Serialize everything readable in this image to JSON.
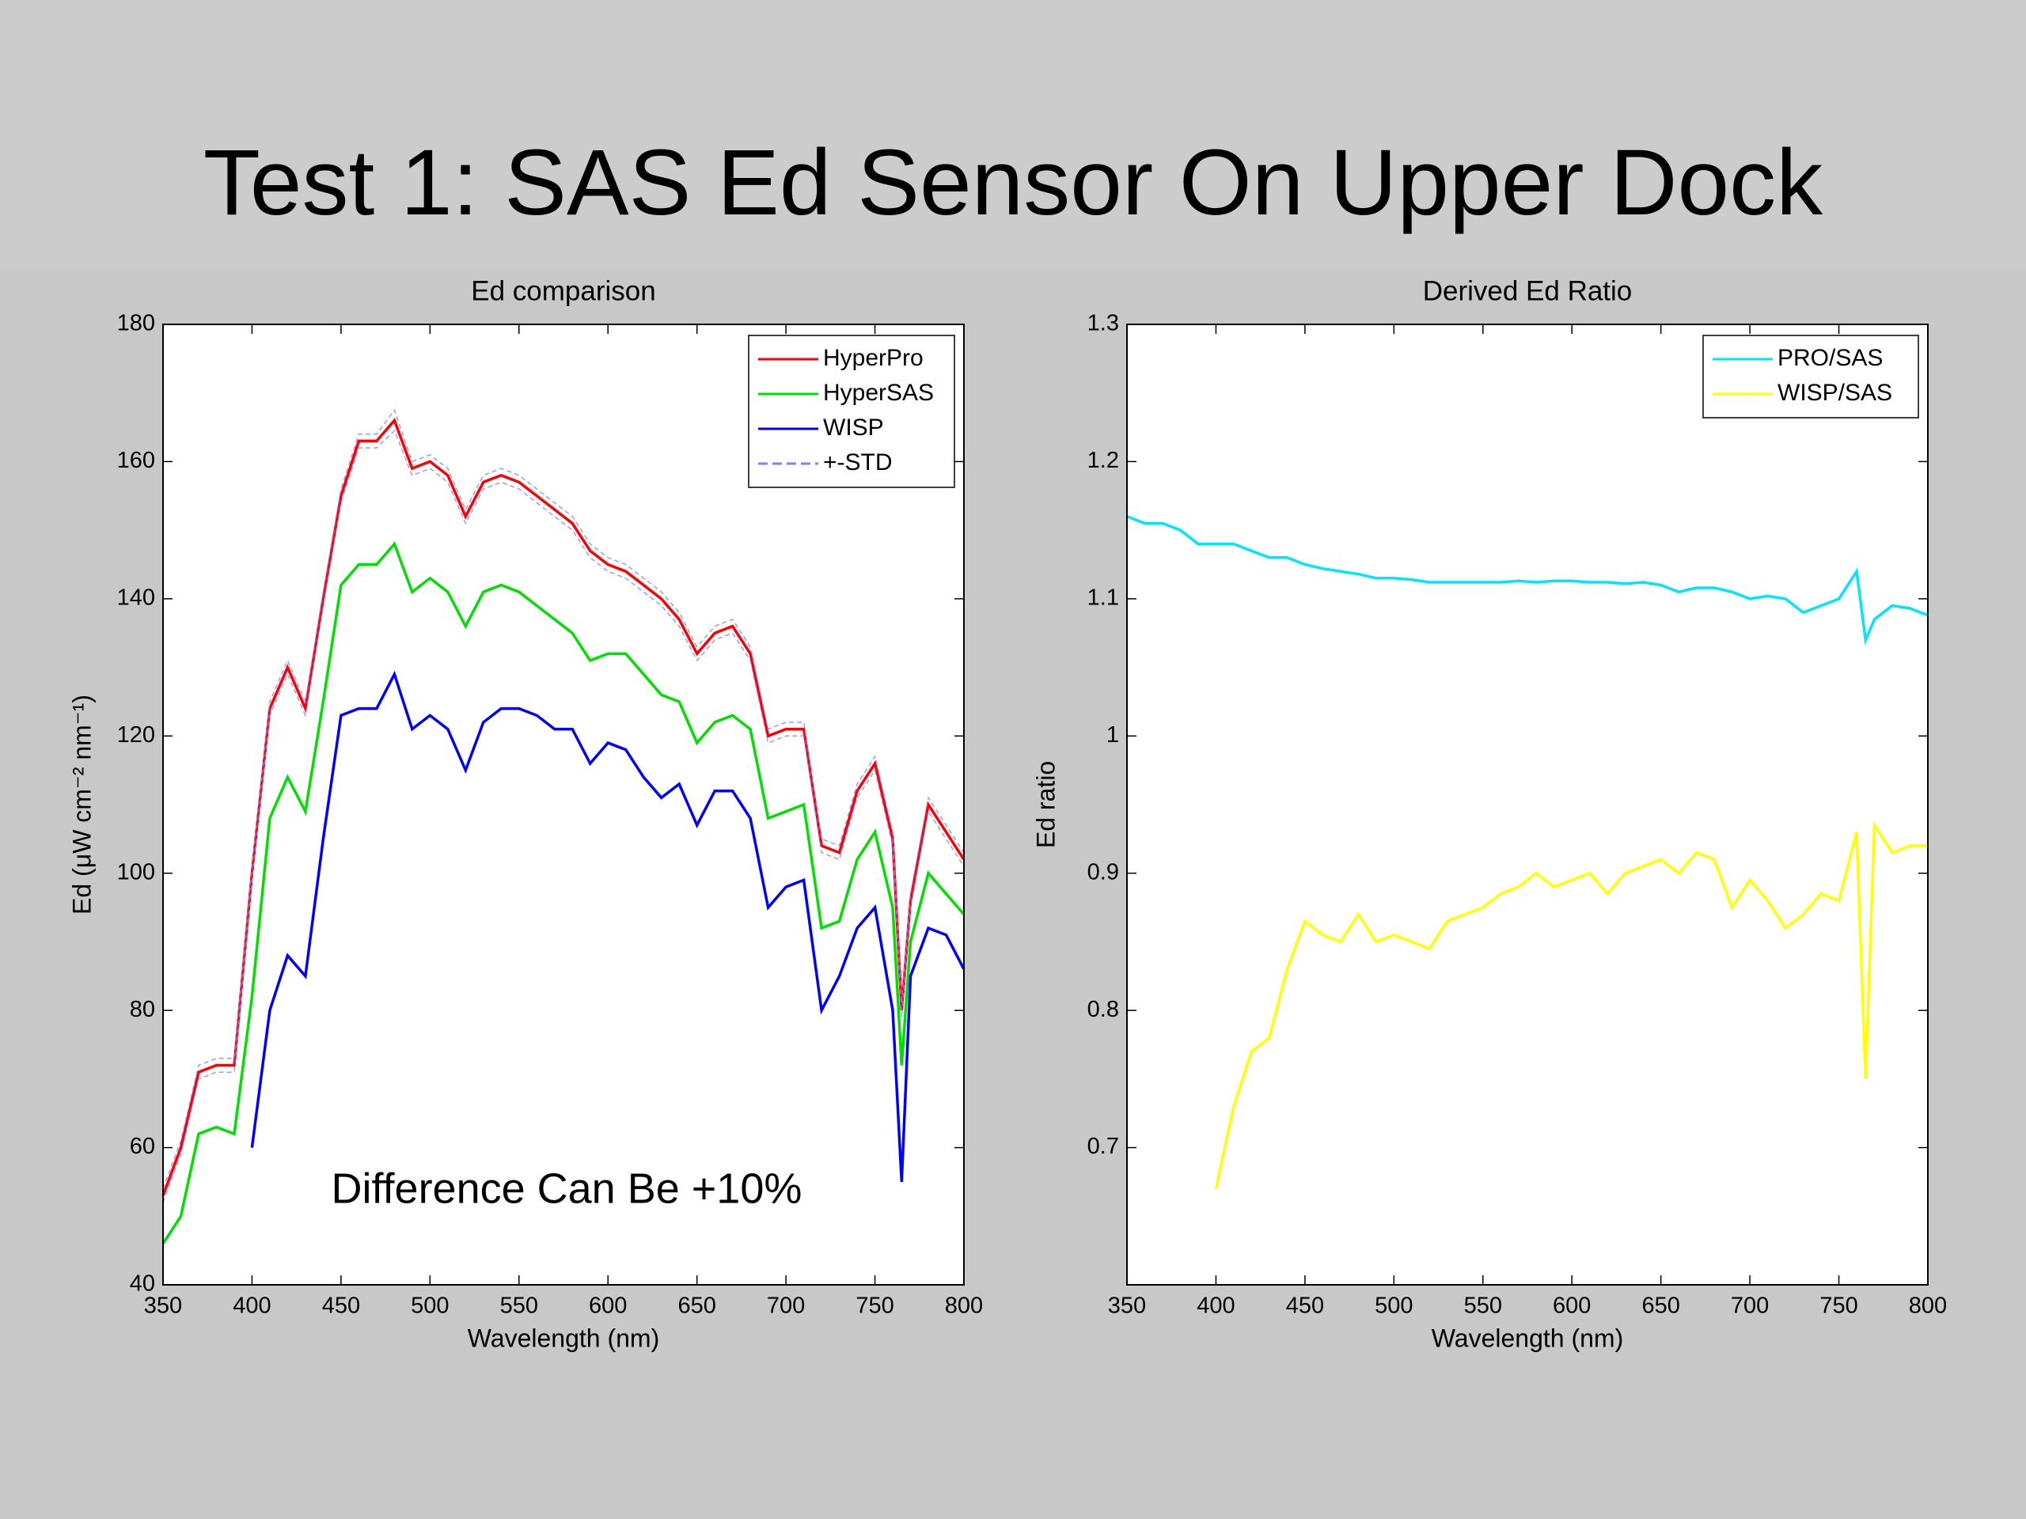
{
  "title": "Test 1: SAS Ed Sensor On Upper Dock",
  "chart_data": [
    {
      "type": "line",
      "title": "Ed comparison",
      "xlabel": "Wavelength (nm)",
      "ylabel": "Ed (μW cm⁻² nm⁻¹)",
      "annotation": "Difference Can Be +10%",
      "legend": "upper right",
      "x": [
        350,
        360,
        370,
        380,
        390,
        400,
        410,
        420,
        430,
        440,
        450,
        460,
        470,
        480,
        490,
        500,
        510,
        520,
        530,
        540,
        550,
        560,
        570,
        580,
        590,
        600,
        610,
        620,
        630,
        640,
        650,
        660,
        670,
        680,
        690,
        700,
        710,
        720,
        730,
        740,
        750,
        760,
        765,
        770,
        780,
        790,
        800
      ],
      "series": [
        {
          "name": "HyperPro",
          "color": "#ff0000",
          "values": [
            53,
            60,
            71,
            72,
            72,
            100,
            124,
            130,
            124,
            140,
            155,
            163,
            163,
            166,
            159,
            160,
            158,
            152,
            157,
            158,
            157,
            155,
            153,
            151,
            147,
            145,
            144,
            142,
            140,
            137,
            132,
            135,
            136,
            132,
            120,
            121,
            121,
            104,
            103,
            112,
            116,
            105,
            80,
            96,
            110,
            106,
            102
          ]
        },
        {
          "name": "HyperSAS",
          "color": "#00e000",
          "values": [
            46,
            50,
            62,
            63,
            62,
            82,
            108,
            114,
            109,
            125,
            142,
            145,
            145,
            148,
            141,
            143,
            141,
            136,
            141,
            142,
            141,
            139,
            137,
            135,
            131,
            132,
            132,
            129,
            126,
            125,
            119,
            122,
            123,
            121,
            108,
            109,
            110,
            92,
            93,
            102,
            106,
            95,
            72,
            90,
            100,
            97,
            94
          ]
        },
        {
          "name": "WISP",
          "color": "#0000ff",
          "values": [
            null,
            null,
            null,
            null,
            null,
            60,
            80,
            88,
            85,
            105,
            123,
            124,
            124,
            129,
            121,
            123,
            121,
            115,
            122,
            124,
            124,
            123,
            121,
            121,
            116,
            119,
            118,
            114,
            111,
            113,
            107,
            112,
            112,
            108,
            95,
            98,
            99,
            80,
            85,
            92,
            95,
            80,
            55,
            85,
            92,
            91,
            86
          ]
        },
        {
          "name": "+-STD",
          "color": "#8080ff",
          "dashed": true,
          "values": [
            1,
            1,
            1,
            1,
            1,
            1,
            1,
            1,
            1,
            1,
            1,
            1,
            1,
            1.5,
            1,
            1,
            1,
            1,
            1,
            1,
            1,
            1,
            1,
            1,
            1,
            1,
            1,
            1,
            1,
            1,
            1,
            1,
            1,
            1,
            1,
            1,
            1,
            1,
            1,
            1,
            1,
            1,
            1,
            1,
            1,
            1,
            1
          ]
        }
      ],
      "xlim": [
        350,
        800
      ],
      "xticks": [
        350,
        400,
        450,
        500,
        550,
        600,
        650,
        700,
        750,
        800
      ],
      "ylim": [
        40,
        180
      ],
      "yticks": [
        40,
        60,
        80,
        100,
        120,
        140,
        160,
        180
      ]
    },
    {
      "type": "line",
      "title": "Derived Ed Ratio",
      "xlabel": "Wavelength (nm)",
      "ylabel": "Ed ratio",
      "legend": "upper right",
      "x": [
        350,
        360,
        370,
        380,
        390,
        400,
        410,
        420,
        430,
        440,
        450,
        460,
        470,
        480,
        490,
        500,
        510,
        520,
        530,
        540,
        550,
        560,
        570,
        580,
        590,
        600,
        610,
        620,
        630,
        640,
        650,
        660,
        670,
        680,
        690,
        700,
        710,
        720,
        730,
        740,
        750,
        760,
        765,
        770,
        780,
        790,
        800
      ],
      "series": [
        {
          "name": "PRO/SAS",
          "color": "#00e5ff",
          "values": [
            1.16,
            1.155,
            1.155,
            1.15,
            1.14,
            1.14,
            1.14,
            1.135,
            1.13,
            1.13,
            1.125,
            1.122,
            1.12,
            1.118,
            1.115,
            1.115,
            1.114,
            1.112,
            1.112,
            1.112,
            1.112,
            1.112,
            1.113,
            1.112,
            1.113,
            1.113,
            1.112,
            1.112,
            1.111,
            1.112,
            1.11,
            1.105,
            1.108,
            1.108,
            1.105,
            1.1,
            1.102,
            1.1,
            1.09,
            1.095,
            1.1,
            1.12,
            1.07,
            1.085,
            1.095,
            1.093,
            1.088
          ]
        },
        {
          "name": "WISP/SAS",
          "color": "#ffff00",
          "values": [
            null,
            null,
            null,
            null,
            null,
            0.67,
            0.73,
            0.77,
            0.78,
            0.83,
            0.865,
            0.855,
            0.85,
            0.87,
            0.85,
            0.855,
            0.85,
            0.845,
            0.865,
            0.87,
            0.875,
            0.885,
            0.89,
            0.9,
            0.89,
            0.895,
            0.9,
            0.885,
            0.9,
            0.905,
            0.91,
            0.9,
            0.915,
            0.91,
            0.875,
            0.895,
            0.88,
            0.86,
            0.87,
            0.885,
            0.88,
            0.93,
            0.75,
            0.935,
            0.915,
            0.92,
            0.92
          ]
        }
      ],
      "xlim": [
        350,
        800
      ],
      "xticks": [
        350,
        400,
        450,
        500,
        550,
        600,
        650,
        700,
        750,
        800
      ],
      "ylim": [
        0.6,
        1.3
      ],
      "yticks": [
        0.7,
        0.8,
        0.9,
        1,
        1.1,
        1.2,
        1.3
      ]
    }
  ]
}
